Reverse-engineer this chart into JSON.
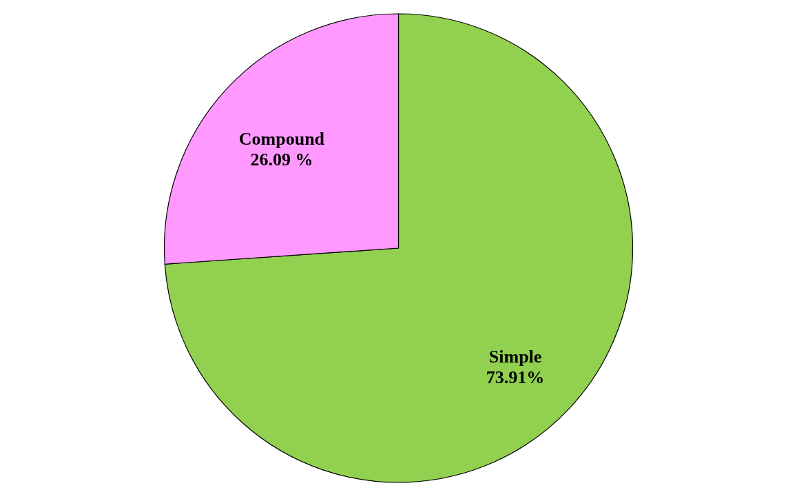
{
  "chart_data": {
    "type": "pie",
    "categories": [
      "Simple",
      "Compound"
    ],
    "values": [
      73.91,
      26.09
    ],
    "colors": [
      "#92d050",
      "#ff99ff"
    ],
    "value_labels": [
      "73.91%",
      "26.09 %"
    ]
  }
}
